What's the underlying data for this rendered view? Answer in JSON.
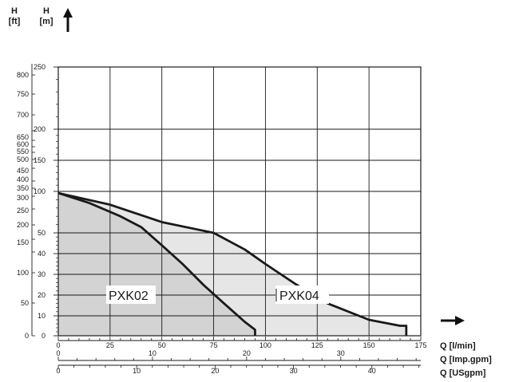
{
  "header": {
    "ft_line1": "H",
    "ft_line2": "[ft]",
    "m_line1": "H",
    "m_line2": "[m]"
  },
  "q_labels": {
    "lmin": "Q [l/min]",
    "impgpm": "Q [Imp.gpm]",
    "usgpm": "Q [USgpm]"
  },
  "chart_data": {
    "type": "area",
    "x_unit": "l/min",
    "y_unit": "m",
    "xlim": [
      0,
      175
    ],
    "ylim": [
      0,
      250
    ],
    "grid": true,
    "series": [
      {
        "name": "PXK04",
        "fill": "#e6e6e6",
        "x": [
          0,
          25,
          50,
          75,
          90,
          100,
          115,
          130,
          150,
          165,
          168,
          168
        ],
        "y": [
          98,
          84,
          63,
          50,
          42,
          35,
          25,
          16,
          8,
          5,
          5,
          0
        ]
      },
      {
        "name": "PXK02",
        "fill": "#d3d3d3",
        "x": [
          0,
          15,
          30,
          40,
          50,
          60,
          70,
          80,
          90,
          95,
          95
        ],
        "y": [
          98,
          86,
          70,
          57,
          44,
          35,
          25,
          16,
          7,
          3,
          0
        ]
      }
    ],
    "axes": {
      "m_ticks": [
        0,
        10,
        20,
        30,
        40,
        50,
        100,
        150,
        200,
        250
      ],
      "ft_ticks": [
        "0",
        "50",
        "100",
        "150",
        "200",
        "250",
        "300",
        "350",
        "400",
        "450",
        "500",
        "550",
        "600",
        "650",
        "700",
        "750",
        "800"
      ],
      "lmin_ticks": [
        "0",
        "25",
        "50",
        "75",
        "100",
        "125",
        "150",
        "175"
      ],
      "impgpm_ticks": [
        "0",
        "10",
        "20",
        "30"
      ],
      "usgpm_ticks": [
        "0",
        "10",
        "20",
        "30",
        "40"
      ]
    }
  },
  "labels": {
    "pxk02": "PXK02",
    "pxk04": "PXK04"
  }
}
